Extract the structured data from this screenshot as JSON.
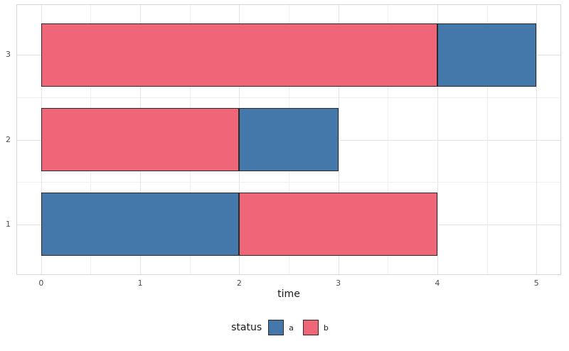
{
  "chart_data": {
    "type": "bar",
    "orientation": "horizontal",
    "stacked": true,
    "title": "",
    "xlabel": "time",
    "ylabel": "",
    "categories": [
      "1",
      "2",
      "3"
    ],
    "x_ticks": [
      0,
      1,
      2,
      3,
      4,
      5
    ],
    "x_minor_ticks": [
      0.5,
      1.5,
      2.5,
      3.5,
      4.5
    ],
    "y_minor_positions": [
      1.5,
      2.5
    ],
    "xlim": [
      -0.25,
      5.25
    ],
    "grid": true,
    "legend_position": "bottom",
    "series_colors": {
      "a": "#4477AA",
      "b": "#EE6677"
    },
    "bar_border_color": "#2b2b2b",
    "rows": [
      {
        "category": "3",
        "segments": [
          {
            "status": "b",
            "start": 0,
            "end": 4
          },
          {
            "status": "a",
            "start": 4,
            "end": 5
          }
        ]
      },
      {
        "category": "2",
        "segments": [
          {
            "status": "b",
            "start": 0,
            "end": 2
          },
          {
            "status": "a",
            "start": 2,
            "end": 3
          }
        ]
      },
      {
        "category": "1",
        "segments": [
          {
            "status": "a",
            "start": 0,
            "end": 2
          },
          {
            "status": "b",
            "start": 2,
            "end": 4
          }
        ]
      }
    ],
    "legend": {
      "title": "status",
      "entries": [
        {
          "label": "a",
          "color": "#4477AA"
        },
        {
          "label": "b",
          "color": "#EE6677"
        }
      ]
    }
  }
}
